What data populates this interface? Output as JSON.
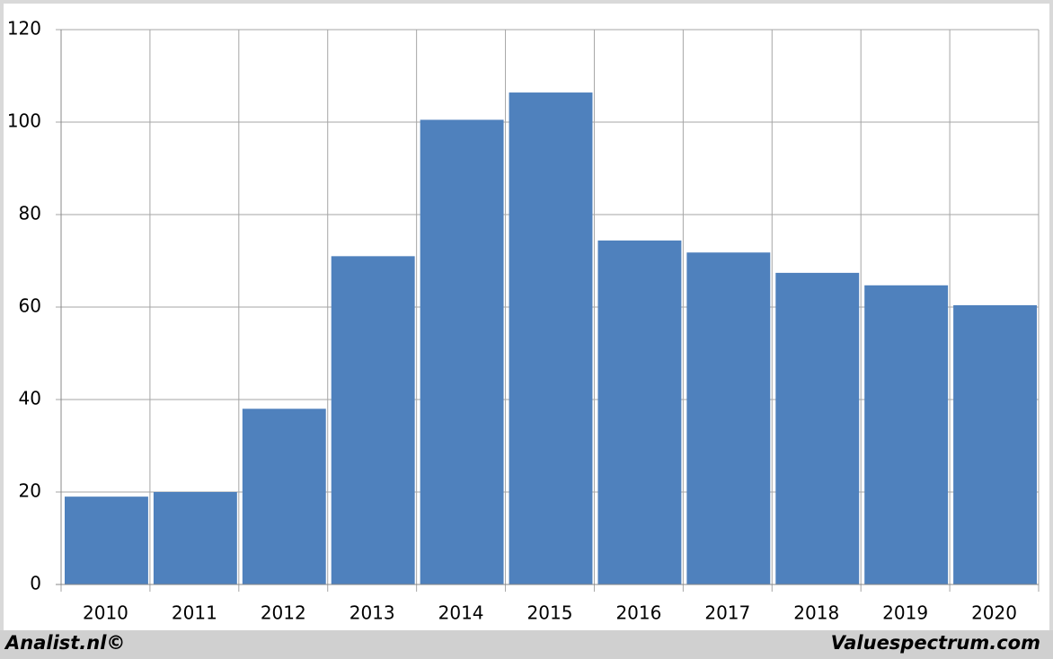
{
  "chart_data": {
    "type": "bar",
    "categories": [
      "2010",
      "2011",
      "2012",
      "2013",
      "2014",
      "2015",
      "2016",
      "2017",
      "2018",
      "2019",
      "2020"
    ],
    "values": [
      19,
      20,
      38,
      71,
      100.5,
      106.4,
      74.4,
      71.8,
      67.4,
      64.7,
      60.4
    ],
    "color": "#4f81bd",
    "ylim": [
      0,
      120
    ],
    "yticks": [
      0,
      20,
      40,
      60,
      80,
      100,
      120
    ],
    "grid": true,
    "source_left": "Analist.nl©",
    "source_right": "Valuespectrum.com"
  }
}
